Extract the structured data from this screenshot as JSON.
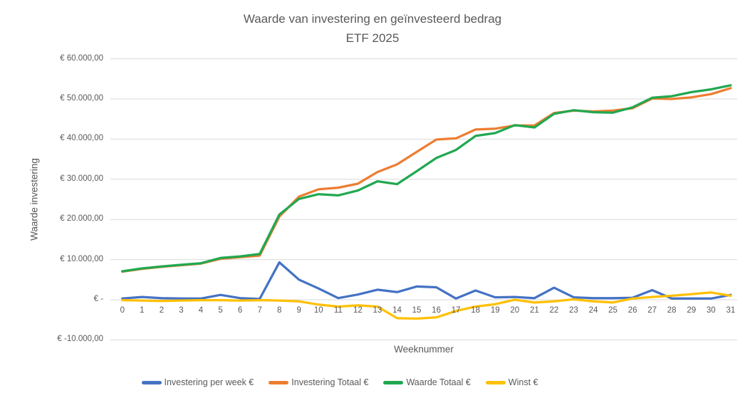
{
  "chart_data": {
    "type": "line",
    "title": "Waarde van investering en geïnvesteerd bedrag",
    "subtitle": "ETF 2025",
    "xlabel": "Weeknummer",
    "ylabel": "Waarde investering",
    "x": [
      0,
      1,
      2,
      3,
      4,
      5,
      6,
      7,
      8,
      9,
      10,
      11,
      12,
      13,
      14,
      15,
      16,
      17,
      18,
      19,
      20,
      21,
      22,
      23,
      24,
      25,
      26,
      27,
      28,
      29,
      30,
      31
    ],
    "ylim": [
      -10000,
      60000
    ],
    "ytick_step": 10000,
    "yticks": [
      {
        "value": 60000,
        "label": "€ 60.000,00"
      },
      {
        "value": 50000,
        "label": "€ 50.000,00"
      },
      {
        "value": 40000,
        "label": "€ 40.000,00"
      },
      {
        "value": 30000,
        "label": "€ 30.000,00"
      },
      {
        "value": 20000,
        "label": "€ 20.000,00"
      },
      {
        "value": 10000,
        "label": "€ 10.000,00"
      },
      {
        "value": 0,
        "label": "€ -"
      },
      {
        "value": -10000,
        "label": "€ -10.000,00"
      }
    ],
    "grid": true,
    "legend_position": "bottom",
    "series": [
      {
        "name": "Investering per week €",
        "color": "#4472C4",
        "values": [
          300,
          700,
          400,
          300,
          300,
          1200,
          400,
          200,
          9300,
          5000,
          2800,
          400,
          1300,
          2500,
          1900,
          3300,
          3100,
          300,
          2300,
          600,
          700,
          400,
          3000,
          600,
          400,
          400,
          500,
          2400,
          300,
          300,
          300,
          1200
        ]
      },
      {
        "name": "Investering Totaal €",
        "color": "#ED7D31",
        "values": [
          7000,
          7700,
          8200,
          8600,
          9000,
          10200,
          10600,
          11000,
          20700,
          25700,
          27500,
          27900,
          28900,
          31800,
          33700,
          36800,
          39900,
          40200,
          42400,
          42600,
          43400,
          43400,
          46500,
          47100,
          46900,
          47100,
          47700,
          50100,
          50000,
          50400,
          51200,
          52700
        ]
      },
      {
        "name": "Waarde Totaal €",
        "color": "#21A850",
        "values": [
          7100,
          7800,
          8300,
          8700,
          9100,
          10400,
          10800,
          11400,
          21200,
          25100,
          26300,
          26000,
          27200,
          29500,
          28800,
          32000,
          35300,
          37300,
          40800,
          41500,
          43500,
          42900,
          46300,
          47200,
          46700,
          46600,
          47900,
          50300,
          50700,
          51700,
          52400,
          53400
        ]
      },
      {
        "name": "Winst €",
        "color": "#FFC000",
        "values": [
          -100,
          -200,
          -300,
          -200,
          -100,
          -100,
          -200,
          -100,
          -200,
          -400,
          -1200,
          -1700,
          -1400,
          -1700,
          -4600,
          -4700,
          -4400,
          -2800,
          -1700,
          -1100,
          0,
          -700,
          -400,
          100,
          -400,
          -700,
          300,
          700,
          1000,
          1400,
          1800,
          1000
        ]
      }
    ]
  },
  "colors": {
    "text": "#595959",
    "gridline": "#D9D9D9",
    "background": "#FFFFFF"
  }
}
